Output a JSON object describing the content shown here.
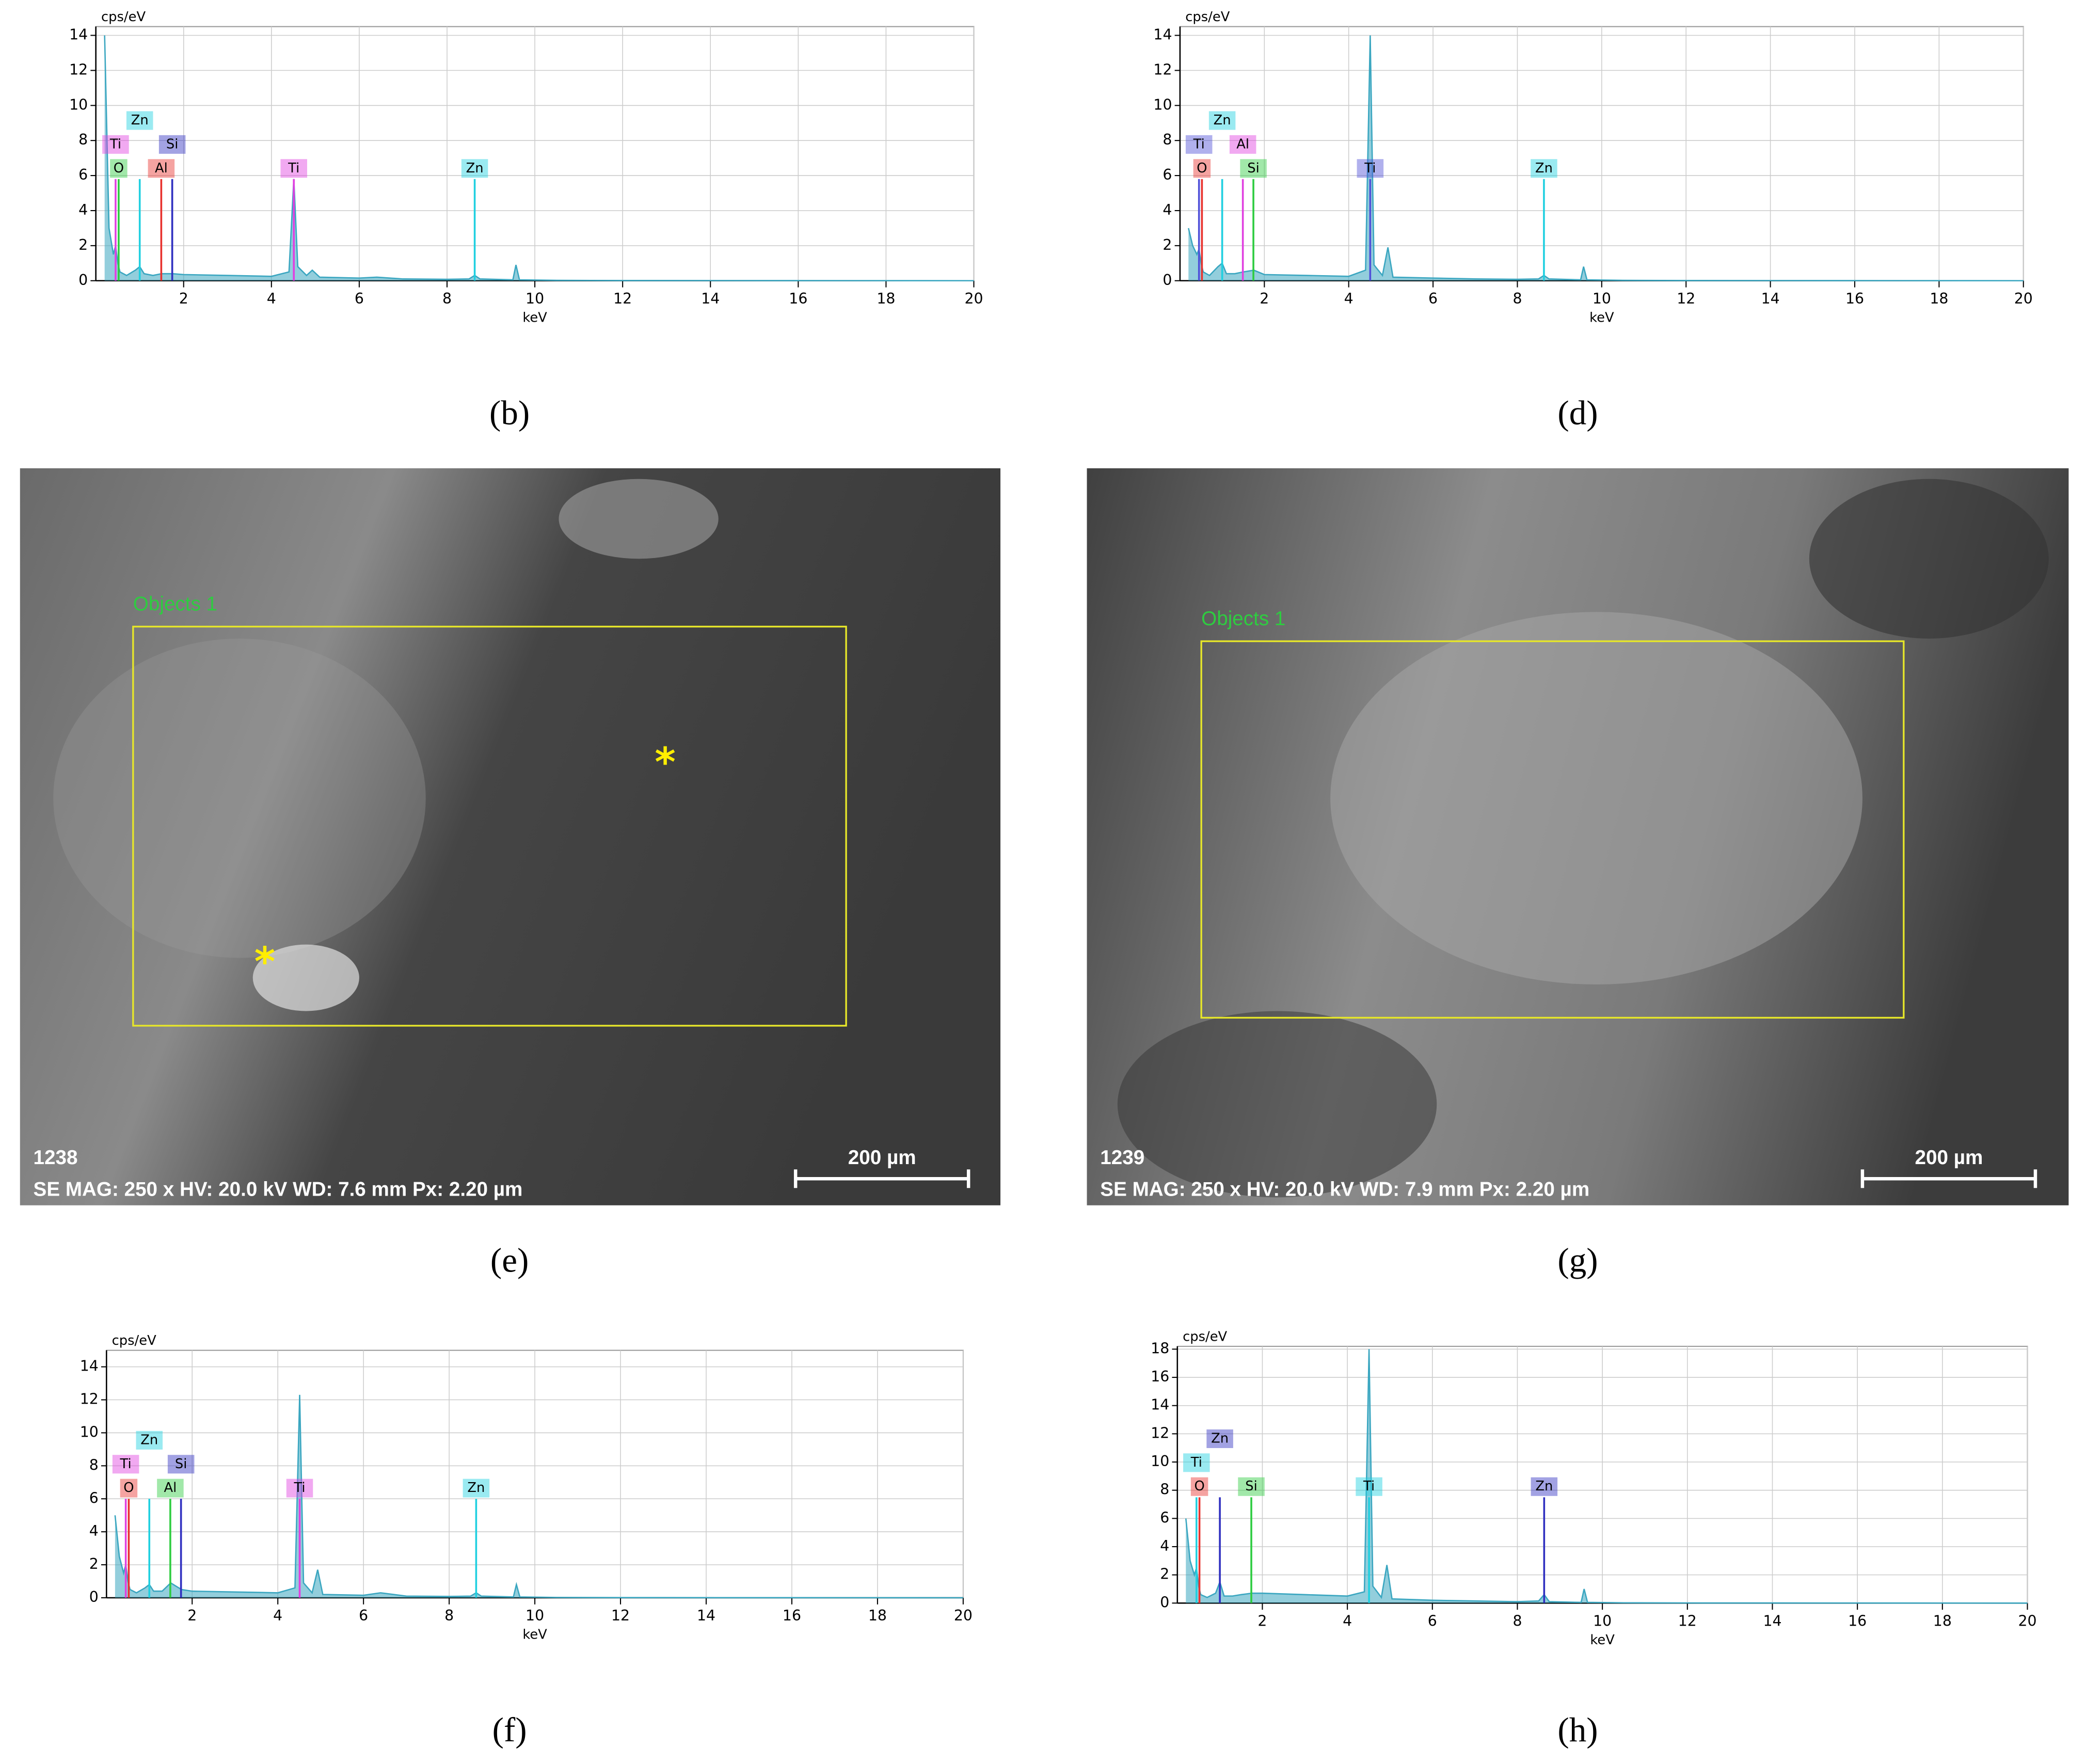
{
  "chart_data": [
    {
      "type": "line",
      "caption": "(b)",
      "ylabel": "cps/eV",
      "xlabel": "keV",
      "xlim": [
        0,
        20
      ],
      "ylim": [
        0,
        14.5
      ],
      "xticks": [
        2,
        4,
        6,
        8,
        10,
        12,
        14,
        16,
        18,
        20
      ],
      "yticks": [
        0,
        2,
        4,
        6,
        8,
        10,
        12,
        14
      ],
      "grid": true,
      "color": "#3aa6c0",
      "x": [
        0.2,
        0.3,
        0.4,
        0.45,
        0.5,
        0.55,
        0.7,
        0.9,
        1.0,
        1.1,
        1.3,
        1.5,
        1.75,
        2.0,
        3.0,
        4.0,
        4.4,
        4.51,
        4.6,
        4.8,
        4.93,
        5.1,
        6.0,
        6.4,
        7.0,
        8.0,
        8.5,
        8.63,
        8.75,
        9.5,
        9.57,
        9.65,
        10.5,
        12,
        20
      ],
      "values": [
        14,
        3,
        1.5,
        2,
        1,
        0.5,
        0.3,
        0.6,
        0.8,
        0.4,
        0.3,
        0.4,
        0.4,
        0.35,
        0.3,
        0.25,
        0.5,
        5.8,
        0.8,
        0.3,
        0.6,
        0.2,
        0.15,
        0.2,
        0.1,
        0.08,
        0.1,
        0.3,
        0.1,
        0.05,
        0.9,
        0.05,
        0.02,
        0.01,
        0
      ],
      "peaks": [
        {
          "label": "O",
          "x": 0.52,
          "y": 5.8,
          "color": "#2ecc40"
        },
        {
          "label": "Al",
          "x": 1.49,
          "y": 5.8,
          "color": "#e8322e"
        },
        {
          "label": "Ti",
          "x": 4.51,
          "y": 5.8,
          "color": "#e040e0"
        },
        {
          "label": "Zn",
          "x": 8.63,
          "y": 5.8,
          "color": "#20d0e0"
        },
        {
          "label": "Ti",
          "x": 0.45,
          "y": 5.8,
          "color": "#e040e0"
        },
        {
          "label": "Zn",
          "x": 1.0,
          "y": 5.8,
          "color": "#20d0e0"
        },
        {
          "label": "Si",
          "x": 1.74,
          "y": 5.8,
          "color": "#3030c0"
        }
      ]
    },
    {
      "type": "line",
      "caption": "(d)",
      "ylabel": "cps/eV",
      "xlabel": "keV",
      "xlim": [
        0,
        20
      ],
      "ylim": [
        0,
        14.5
      ],
      "xticks": [
        2,
        4,
        6,
        8,
        10,
        12,
        14,
        16,
        18,
        20
      ],
      "yticks": [
        0,
        2,
        4,
        6,
        8,
        10,
        12,
        14
      ],
      "grid": true,
      "color": "#3aa6c0",
      "x": [
        0.2,
        0.3,
        0.4,
        0.45,
        0.5,
        0.55,
        0.7,
        0.9,
        1.0,
        1.1,
        1.3,
        1.5,
        1.75,
        2.0,
        3.0,
        4.0,
        4.4,
        4.51,
        4.6,
        4.8,
        4.93,
        5.05,
        6.0,
        7.0,
        8.0,
        8.5,
        8.63,
        8.75,
        9.5,
        9.57,
        9.65,
        10.5,
        12,
        20
      ],
      "values": [
        3,
        2,
        1.5,
        1.8,
        1,
        0.5,
        0.3,
        0.8,
        1,
        0.4,
        0.4,
        0.5,
        0.6,
        0.35,
        0.3,
        0.25,
        0.6,
        14,
        0.9,
        0.3,
        1.9,
        0.2,
        0.15,
        0.1,
        0.08,
        0.1,
        0.3,
        0.1,
        0.05,
        0.8,
        0.05,
        0.02,
        0.01,
        0
      ],
      "peaks": [
        {
          "label": "O",
          "x": 0.52,
          "y": 5.8,
          "color": "#e8322e"
        },
        {
          "label": "Si",
          "x": 1.74,
          "y": 5.8,
          "color": "#2ecc40"
        },
        {
          "label": "Ti",
          "x": 4.51,
          "y": 5.8,
          "color": "#5050d8"
        },
        {
          "label": "Zn",
          "x": 8.63,
          "y": 5.8,
          "color": "#20d0e0"
        },
        {
          "label": "Ti",
          "x": 0.45,
          "y": 5.8,
          "color": "#5050d8"
        },
        {
          "label": "Zn",
          "x": 1.0,
          "y": 5.8,
          "color": "#20d0e0"
        },
        {
          "label": "Al",
          "x": 1.49,
          "y": 5.8,
          "color": "#e040e0"
        }
      ]
    },
    {
      "type": "line",
      "caption": "(f)",
      "ylabel": "cps/eV",
      "xlabel": "keV",
      "xlim": [
        0,
        20
      ],
      "ylim": [
        0,
        15
      ],
      "xticks": [
        2,
        4,
        6,
        8,
        10,
        12,
        14,
        16,
        18,
        20
      ],
      "yticks": [
        0,
        2,
        4,
        6,
        8,
        10,
        12,
        14
      ],
      "grid": true,
      "color": "#3aa6c0",
      "x": [
        0.2,
        0.3,
        0.4,
        0.45,
        0.5,
        0.55,
        0.7,
        0.9,
        1.0,
        1.1,
        1.3,
        1.5,
        1.75,
        2.0,
        3.0,
        4.0,
        4.4,
        4.51,
        4.6,
        4.8,
        4.93,
        5.05,
        6.0,
        6.4,
        7.0,
        8.0,
        8.5,
        8.63,
        8.75,
        9.5,
        9.57,
        9.65,
        10.5,
        12,
        20
      ],
      "values": [
        5,
        2.5,
        1.5,
        2,
        1,
        0.5,
        0.3,
        0.6,
        0.8,
        0.4,
        0.4,
        0.9,
        0.5,
        0.4,
        0.35,
        0.3,
        0.6,
        12.3,
        0.9,
        0.3,
        1.7,
        0.2,
        0.15,
        0.3,
        0.1,
        0.08,
        0.1,
        0.3,
        0.1,
        0.05,
        0.8,
        0.05,
        0.02,
        0.01,
        0
      ],
      "peaks": [
        {
          "label": "O",
          "x": 0.52,
          "y": 6,
          "color": "#e8322e"
        },
        {
          "label": "Al",
          "x": 1.49,
          "y": 6,
          "color": "#2ecc40"
        },
        {
          "label": "Ti",
          "x": 4.51,
          "y": 6,
          "color": "#e040e0"
        },
        {
          "label": "Zn",
          "x": 8.63,
          "y": 6,
          "color": "#20d0e0"
        },
        {
          "label": "Ti",
          "x": 0.45,
          "y": 6,
          "color": "#e040e0"
        },
        {
          "label": "Zn",
          "x": 1.0,
          "y": 6,
          "color": "#20d0e0"
        },
        {
          "label": "Si",
          "x": 1.74,
          "y": 6,
          "color": "#3030c0"
        }
      ]
    },
    {
      "type": "line",
      "caption": "(h)",
      "ylabel": "cps/eV",
      "xlabel": "keV",
      "xlim": [
        0,
        20
      ],
      "ylim": [
        0,
        18.2
      ],
      "xticks": [
        2,
        4,
        6,
        8,
        10,
        12,
        14,
        16,
        18,
        20
      ],
      "yticks": [
        0,
        2,
        4,
        6,
        8,
        10,
        12,
        14,
        16,
        18
      ],
      "grid": true,
      "color": "#3aa6c0",
      "x": [
        0.2,
        0.3,
        0.4,
        0.45,
        0.5,
        0.55,
        0.7,
        0.9,
        1.0,
        1.1,
        1.3,
        1.5,
        1.75,
        2.0,
        3.0,
        4.0,
        4.4,
        4.51,
        4.6,
        4.8,
        4.93,
        5.05,
        6.0,
        7.0,
        8.0,
        8.5,
        8.63,
        8.75,
        9.5,
        9.57,
        9.65,
        10.5,
        12,
        20
      ],
      "values": [
        6,
        3,
        2,
        2.5,
        1.2,
        0.6,
        0.4,
        0.7,
        1.5,
        0.5,
        0.5,
        0.6,
        0.7,
        0.7,
        0.6,
        0.5,
        0.8,
        18,
        1.2,
        0.4,
        2.7,
        0.3,
        0.2,
        0.15,
        0.1,
        0.15,
        0.6,
        0.1,
        0.05,
        1.0,
        0.05,
        0.02,
        0.01,
        0
      ],
      "peaks": [
        {
          "label": "O",
          "x": 0.52,
          "y": 7.5,
          "color": "#e8322e"
        },
        {
          "label": "Si",
          "x": 1.74,
          "y": 7.5,
          "color": "#2ecc40"
        },
        {
          "label": "Ti",
          "x": 4.51,
          "y": 7.5,
          "color": "#20d0e0"
        },
        {
          "label": "Zn",
          "x": 8.63,
          "y": 7.5,
          "color": "#3030c0"
        },
        {
          "label": "Ti",
          "x": 0.45,
          "y": 7.5,
          "color": "#20d0e0"
        },
        {
          "label": "Zn",
          "x": 1.0,
          "y": 7.5,
          "color": "#3030c0"
        }
      ]
    }
  ],
  "images": [
    {
      "caption": "(e)",
      "object_label": "Objects 1",
      "id": "1238",
      "info": "SE  MAG: 250 x HV: 20.0 kV  WD: 7.6 mm  Px: 2.20 µm",
      "scale_bar": "200 µm",
      "markers": [
        "*",
        "*"
      ]
    },
    {
      "caption": "(g)",
      "object_label": "Objects 1",
      "id": "1239",
      "info": "SE  MAG: 250 x HV: 20.0 kV  WD: 7.9 mm  Px: 2.20 µm",
      "scale_bar": "200 µm"
    }
  ]
}
